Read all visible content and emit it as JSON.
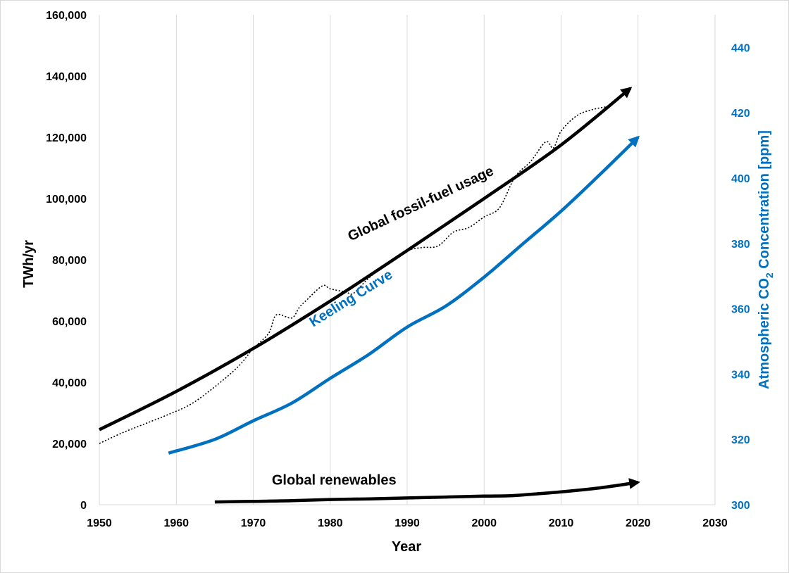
{
  "chart_data": {
    "type": "line",
    "xlabel": "Year",
    "ylabel": "TWh/yr",
    "y2label_parts": {
      "pre": "Atmospheric CO",
      "sub": "2",
      "post": " Concentration [ppm]"
    },
    "xlim": [
      1950,
      2030
    ],
    "ylim": [
      0,
      160000
    ],
    "y2lim": [
      300,
      450
    ],
    "x_ticks": [
      1950,
      1960,
      1970,
      1980,
      1990,
      2000,
      2010,
      2020,
      2030
    ],
    "x_tick_labels": [
      "1950",
      "1960",
      "1970",
      "1980",
      "1990",
      "2000",
      "2010",
      "2020",
      "2030"
    ],
    "y_ticks": [
      0,
      20000,
      40000,
      60000,
      80000,
      100000,
      120000,
      140000,
      160000
    ],
    "y_tick_labels": [
      "0",
      "20,000",
      "40,000",
      "60,000",
      "80,000",
      "100,000",
      "120,000",
      "140,000",
      "160,000"
    ],
    "y2_ticks": [
      300,
      320,
      340,
      360,
      380,
      400,
      420,
      440
    ],
    "y2_tick_labels": [
      "300",
      "320",
      "340",
      "360",
      "380",
      "400",
      "420",
      "440"
    ],
    "grid": "vertical",
    "series": [
      {
        "name": "Global fossil-fuel usage",
        "axis": "left",
        "style": "thick-arrow",
        "color": "#000000",
        "label_pos": {
          "x": 1992,
          "y": 97000,
          "angle_deg": -25
        },
        "x": [
          1950,
          1960,
          1970,
          1980,
          1990,
          2000,
          2010,
          2019
        ],
        "values": [
          24500,
          37000,
          51000,
          66500,
          83000,
          100000,
          117500,
          136000
        ]
      },
      {
        "name": "Global fossil-fuel usage (annual)",
        "axis": "left",
        "style": "dotted",
        "color": "#000000",
        "x": [
          1950,
          1953,
          1956,
          1959,
          1962,
          1965,
          1968,
          1970,
          1972,
          1973,
          1975,
          1976,
          1977,
          1979,
          1980,
          1982,
          1983,
          1985,
          1988,
          1990,
          1992,
          1994,
          1996,
          1998,
          2000,
          2002,
          2004,
          2006,
          2008,
          2009,
          2010,
          2012,
          2014,
          2016
        ],
        "values": [
          20000,
          23500,
          26500,
          29500,
          33000,
          38500,
          45000,
          51000,
          56000,
          62000,
          61000,
          64500,
          67000,
          71500,
          70500,
          69500,
          69000,
          74000,
          80000,
          83000,
          84000,
          84500,
          89000,
          90500,
          94000,
          97000,
          107000,
          112000,
          118500,
          116500,
          122000,
          127000,
          129000,
          130000
        ]
      },
      {
        "name": "Keeling Curve",
        "axis": "right",
        "style": "thick-arrow",
        "color": "#0070C0",
        "label_pos": {
          "x": 1983,
          "y": 362,
          "angle_deg": -32
        },
        "x": [
          1959,
          1965,
          1970,
          1975,
          1980,
          1985,
          1990,
          1995,
          2000,
          2005,
          2010,
          2015,
          2020
        ],
        "values": [
          315.8,
          320.0,
          325.7,
          331.1,
          338.7,
          346.0,
          354.4,
          360.8,
          369.7,
          379.8,
          389.9,
          401.0,
          412.5
        ]
      },
      {
        "name": "Global renewables",
        "axis": "left",
        "style": "thick-arrow",
        "color": "#000000",
        "label_pos": {
          "x": 1980.5,
          "y": 6500,
          "angle_deg": 0
        },
        "x": [
          1965,
          1970,
          1975,
          1980,
          1985,
          1990,
          1995,
          2000,
          2003,
          2005,
          2010,
          2015,
          2020
        ],
        "values": [
          900,
          1100,
          1300,
          1700,
          1900,
          2200,
          2500,
          2800,
          2900,
          3200,
          4200,
          5500,
          7300
        ]
      }
    ]
  }
}
